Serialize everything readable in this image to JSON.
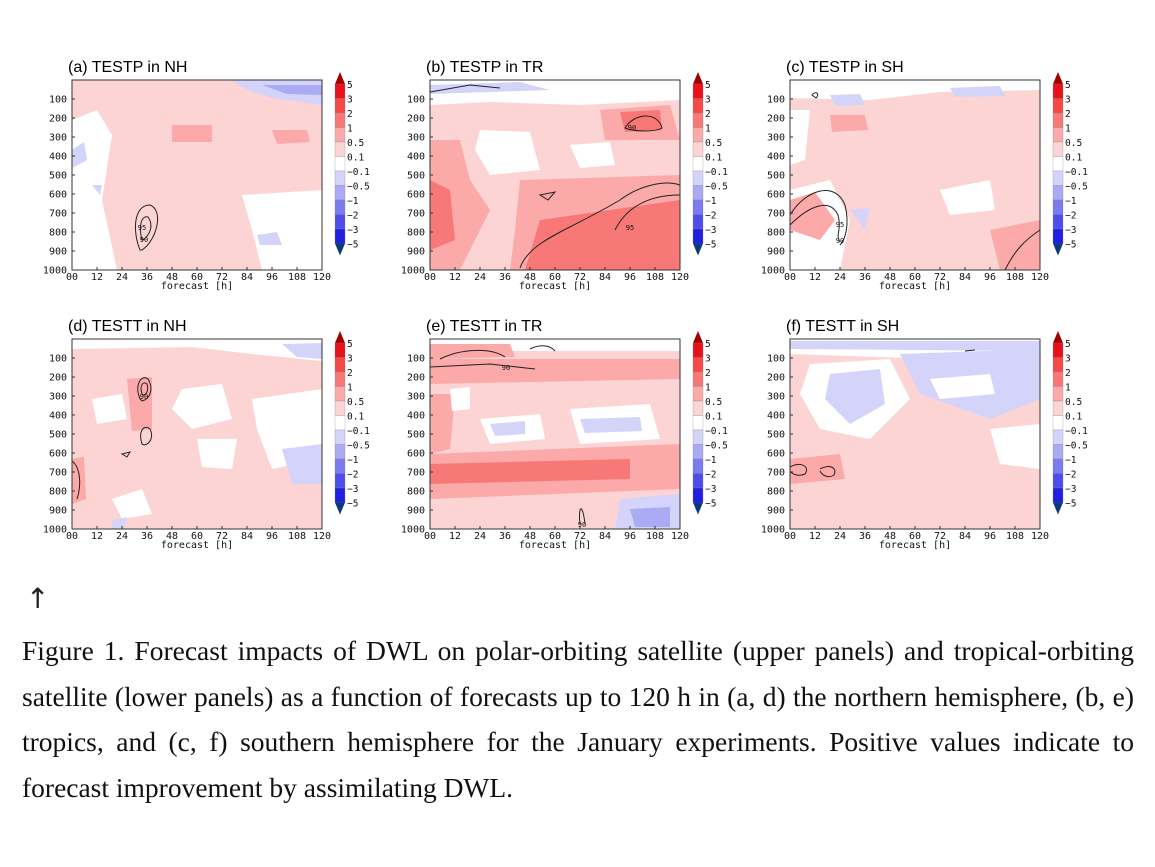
{
  "figure": {
    "panels": [
      {
        "title": "(a) TESTP in NH"
      },
      {
        "title": "(b) TESTP in TR"
      },
      {
        "title": "(c) TESTP in SH"
      },
      {
        "title": "(d) TESTT in NH"
      },
      {
        "title": "(e) TESTT in TR"
      },
      {
        "title": "(f) TESTT in SH"
      }
    ],
    "x_ticks": [
      "00",
      "12",
      "24",
      "36",
      "48",
      "60",
      "72",
      "84",
      "96",
      "108",
      "120"
    ],
    "y_ticks": [
      "100",
      "200",
      "300",
      "400",
      "500",
      "600",
      "700",
      "800",
      "900",
      "1000"
    ],
    "x_label": "forecast [h]",
    "colorbar": {
      "labels": [
        "5",
        "3",
        "2",
        "1",
        "0.5",
        "0.1",
        "−0.1",
        "−0.5",
        "−1",
        "−2",
        "−3",
        "−5"
      ],
      "colors": [
        "#e8111c",
        "#f54848",
        "#f87878",
        "#fba9a9",
        "#fdd4d4",
        "#ffffff",
        "#d4d4fb",
        "#aaaaf5",
        "#7b7bf0",
        "#4d4dec",
        "#2020e0"
      ],
      "end_top_color": "#a00000",
      "end_bottom_color": "#0a3a78"
    },
    "contour_labels": [
      "95",
      "90"
    ]
  },
  "arrow": "↑",
  "caption": "Figure 1. Forecast impacts of DWL on polar-orbiting satellite (upper panels) and tropical-orbiting satellite (lower panels) as a function of forecasts up to 120 h in (a, d) the northern hemisphere, (b, e) tropics, and (c, f) southern hemisphere for the January experiments. Positive values indicate to forecast improvement by assimilating DWL."
}
